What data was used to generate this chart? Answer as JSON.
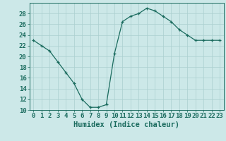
{
  "x": [
    0,
    1,
    2,
    3,
    4,
    5,
    6,
    7,
    8,
    9,
    10,
    11,
    12,
    13,
    14,
    15,
    16,
    17,
    18,
    19,
    20,
    21,
    22,
    23
  ],
  "y": [
    23,
    22,
    21,
    19,
    17,
    15,
    12,
    10.5,
    10.5,
    11,
    20.5,
    26.5,
    27.5,
    28,
    29,
    28.5,
    27.5,
    26.5,
    25,
    24,
    23,
    23,
    23,
    23
  ],
  "line_color": "#1a6b5e",
  "marker": "+",
  "bg_color": "#cce8e8",
  "grid_color": "#aacfcf",
  "xlabel": "Humidex (Indice chaleur)",
  "ylim": [
    10,
    30
  ],
  "xlim": [
    -0.5,
    23.5
  ],
  "yticks": [
    10,
    12,
    14,
    16,
    18,
    20,
    22,
    24,
    26,
    28
  ],
  "xticks": [
    0,
    1,
    2,
    3,
    4,
    5,
    6,
    7,
    8,
    9,
    10,
    11,
    12,
    13,
    14,
    15,
    16,
    17,
    18,
    19,
    20,
    21,
    22,
    23
  ],
  "axis_color": "#1a6b5e",
  "tick_font_size": 6.5,
  "xlabel_font_size": 7.5
}
